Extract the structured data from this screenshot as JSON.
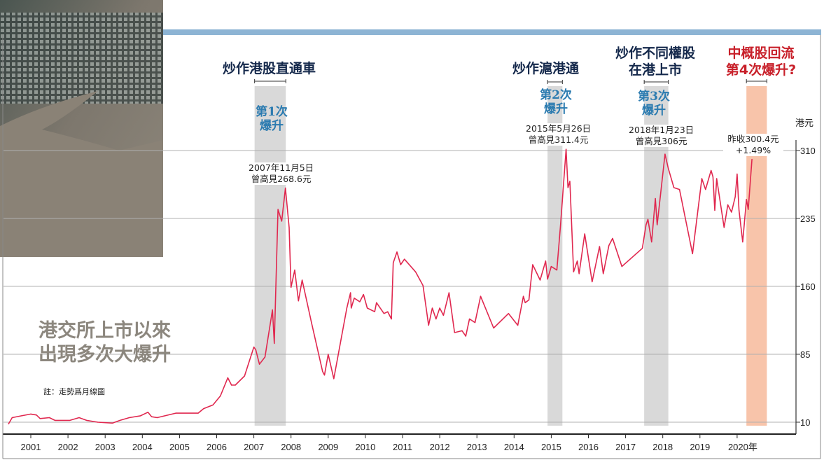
{
  "chart_data": {
    "type": "line",
    "title": "港交所上市以來出現多次大爆升",
    "note": "註：走勢爲月線圖",
    "ylabel": "港元",
    "xlabel": "",
    "ylim": [
      10,
      310
    ],
    "xlim": [
      2000.4,
      2021.6
    ],
    "y_ticks": [
      10,
      85,
      160,
      235,
      310
    ],
    "x_tick_labels": [
      "2001",
      "2002",
      "2003",
      "2004",
      "2005",
      "2006",
      "2007",
      "2008",
      "2009",
      "2010",
      "2011",
      "2012",
      "2013",
      "2014",
      "2015",
      "2016",
      "2017",
      "2018",
      "2019",
      "2020年"
    ],
    "grid": true,
    "line_color": "#e0284f",
    "series": [
      {
        "x": [
          2000.4,
          2000.5,
          2000.75,
          2001.0,
          2001.15,
          2001.25,
          2001.5,
          2001.65,
          2002.05,
          2002.3,
          2002.5,
          2002.8,
          2003.2,
          2003.4,
          2003.65,
          2003.95,
          2004.15,
          2004.25,
          2004.4,
          2004.9,
          2005.5,
          2005.65,
          2005.9,
          2006.1,
          2006.3,
          2006.4,
          2006.5,
          2006.75,
          2007.0,
          2007.05,
          2007.15,
          2007.3,
          2007.5,
          2007.55,
          2007.65,
          2007.75,
          2007.85,
          2007.95,
          2008.0,
          2008.1,
          2008.2,
          2008.3,
          2008.55,
          2008.85,
          2008.9,
          2009.0,
          2009.15,
          2009.5,
          2009.6,
          2009.62,
          2009.7,
          2009.85,
          2009.95,
          2010.05,
          2010.25,
          2010.3,
          2010.5,
          2010.6,
          2010.7,
          2010.75,
          2010.85,
          2010.95,
          2011.05,
          2011.35,
          2011.55,
          2011.7,
          2011.8,
          2011.9,
          2012.0,
          2012.1,
          2012.25,
          2012.4,
          2012.6,
          2012.7,
          2012.8,
          2012.95,
          2013.1,
          2013.45,
          2013.85,
          2014.1,
          2014.25,
          2014.3,
          2014.4,
          2014.5,
          2014.7,
          2014.85,
          2014.9,
          2015.0,
          2015.15,
          2015.25,
          2015.4,
          2015.45,
          2015.5,
          2015.6,
          2015.7,
          2015.75,
          2015.9,
          2016.1,
          2016.3,
          2016.4,
          2016.55,
          2016.65,
          2016.9,
          2017.45,
          2017.55,
          2017.6,
          2017.7,
          2017.8,
          2017.85,
          2018.06,
          2018.15,
          2018.3,
          2018.45,
          2018.8,
          2019.05,
          2019.15,
          2019.3,
          2019.35,
          2019.4,
          2019.45,
          2019.55,
          2019.65,
          2019.75,
          2019.85,
          2019.95,
          2020.0,
          2020.05,
          2020.15,
          2020.25,
          2020.3,
          2020.4
        ],
        "values": [
          8,
          15,
          17,
          19,
          18,
          14,
          15,
          12,
          12,
          15,
          12,
          10,
          9,
          12,
          15,
          17,
          21,
          16,
          15,
          20,
          20,
          25,
          29,
          39,
          59,
          51,
          51,
          61,
          93,
          90,
          74,
          82,
          134,
          97,
          245,
          232,
          268.6,
          225,
          159,
          178,
          144,
          167,
          120,
          66,
          62,
          85,
          58,
          136,
          153,
          136,
          147,
          143,
          151,
          136,
          132,
          142,
          130,
          132,
          124,
          186,
          198,
          184,
          190,
          176,
          161,
          117,
          136,
          124,
          136,
          128,
          153,
          109,
          111,
          105,
          124,
          120,
          149,
          114,
          130,
          117,
          149,
          142,
          145,
          184,
          167,
          188,
          168,
          182,
          178,
          228,
          311.4,
          269,
          276,
          176,
          188,
          174,
          218,
          165,
          204,
          174,
          205,
          213,
          182,
          202,
          228,
          234,
          209,
          257,
          228,
          306,
          290,
          269,
          267,
          196,
          279,
          267,
          288,
          281,
          244,
          279,
          252,
          225,
          250,
          242,
          259,
          284,
          244,
          209,
          256,
          245,
          300.4
        ]
      }
    ],
    "bands": [
      {
        "from": 2007.02,
        "to": 2007.86,
        "color": "#d9d9d9"
      },
      {
        "from": 2014.9,
        "to": 2015.3,
        "color": "#d9d9d9"
      },
      {
        "from": 2017.5,
        "to": 2018.15,
        "color": "#d9d9d9"
      },
      {
        "from": 2020.25,
        "to": 2020.8,
        "color": "#f8c4aa"
      }
    ],
    "annotations": {
      "a1_head": "炒作港股直通車",
      "a1_surge": [
        "第1次",
        "爆升"
      ],
      "a1_note": [
        "2007年11月5日",
        "曾高見268.6元"
      ],
      "a2_head": "炒作滬港通",
      "a2_surge": [
        "第2次",
        "爆升"
      ],
      "a2_note": [
        "2015年5月26日",
        "曾高見311.4元"
      ],
      "a3_head": [
        "炒作不同權股",
        "在港上市"
      ],
      "a3_surge": [
        "第3次",
        "爆升"
      ],
      "a3_note": [
        "2018年1月23日",
        "曾高見306元"
      ],
      "a4_head": [
        "中概股回流",
        "第4次爆升?"
      ],
      "a4_note": [
        "昨收300.4元",
        "+1.49%"
      ]
    },
    "big_title": [
      "港交所上市以來",
      "出現多次大爆升"
    ]
  },
  "colors": {
    "top_bar": "#8db4d4",
    "grid": "#b0b0b0",
    "axis": "#333333"
  }
}
